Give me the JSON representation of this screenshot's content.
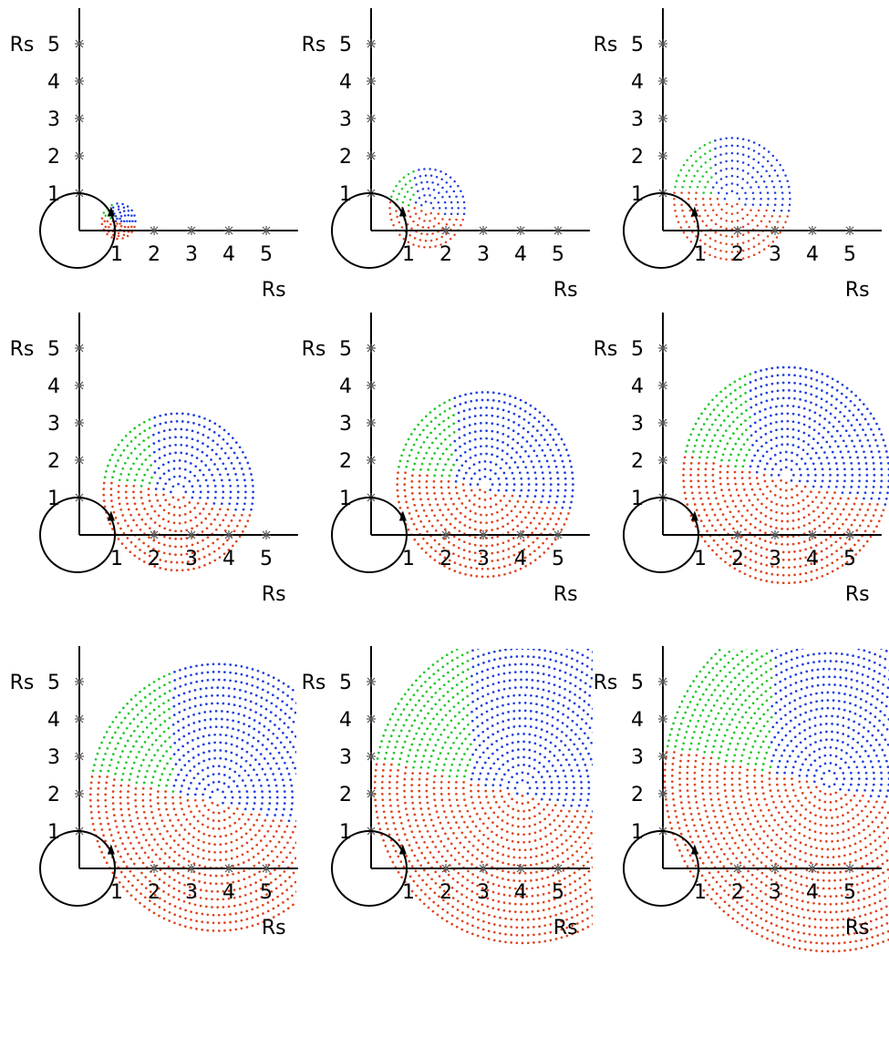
{
  "axis_unit": "Rs",
  "x_tick_labels": [
    "1",
    "2",
    "3",
    "4",
    "5"
  ],
  "y_tick_labels": [
    "1",
    "2",
    "3",
    "4",
    "5"
  ],
  "colors": {
    "axes": "#000000",
    "sun_circle": "#000000",
    "dots_green": "#22c82a",
    "dots_blue": "#1f3fe0",
    "dots_red": "#e0441c"
  },
  "icons": [
    "origin-circle-icon",
    "arrow-marker-icon"
  ],
  "panels": [
    {
      "id": "p1",
      "center": [
        1.05,
        0.25
      ],
      "radius": 0.45
    },
    {
      "id": "p2",
      "center": [
        1.5,
        0.6
      ],
      "radius": 1.0
    },
    {
      "id": "p3",
      "center": [
        1.85,
        0.85
      ],
      "radius": 1.55
    },
    {
      "id": "p4",
      "center": [
        2.65,
        1.15
      ],
      "radius": 2.0
    },
    {
      "id": "p5",
      "center": [
        3.05,
        1.35
      ],
      "radius": 2.35
    },
    {
      "id": "p6",
      "center": [
        3.3,
        1.6
      ],
      "radius": 2.75
    },
    {
      "id": "p7",
      "center": [
        3.7,
        1.9
      ],
      "radius": 3.4
    },
    {
      "id": "p8",
      "center": [
        4.05,
        2.15
      ],
      "radius": 3.95
    },
    {
      "id": "p9",
      "center": [
        4.45,
        2.4
      ],
      "radius": 4.4
    }
  ]
}
